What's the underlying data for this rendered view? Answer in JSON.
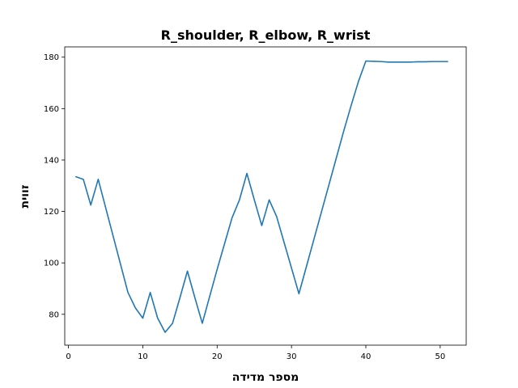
{
  "chart_data": {
    "type": "line",
    "title": "R_shoulder, R_elbow, R_wrist",
    "xlabel": "מספר מדידה",
    "ylabel": "זווית",
    "xlim": [
      -0.5,
      53.5
    ],
    "ylim": [
      68,
      184
    ],
    "xticks": [
      0,
      10,
      20,
      30,
      40,
      50
    ],
    "yticks": [
      80,
      100,
      120,
      140,
      160,
      180
    ],
    "grid": false,
    "series": [
      {
        "color": "#1f77b4",
        "x": [
          1,
          2,
          3,
          4,
          5,
          6,
          7,
          8,
          9,
          10,
          11,
          12,
          13,
          14,
          15,
          16,
          17,
          18,
          19,
          20,
          21,
          22,
          23,
          24,
          25,
          26,
          27,
          28,
          29,
          30,
          31,
          32,
          33,
          34,
          35,
          36,
          37,
          38,
          39,
          40,
          41,
          42,
          43,
          44,
          45,
          46,
          47,
          48,
          49,
          50,
          51
        ],
        "y": [
          133.5,
          132.5,
          122.5,
          132.5,
          121.5,
          110.5,
          99.5,
          88.5,
          82.5,
          78.5,
          88.5,
          78.5,
          73.0,
          76.5,
          86.5,
          96.8,
          86.5,
          76.5,
          87.0,
          97.5,
          107.5,
          117.5,
          124.5,
          134.8,
          124.5,
          114.5,
          124.5,
          118.0,
          108.0,
          98.0,
          88.0,
          98.5,
          109.0,
          119.5,
          130.0,
          140.5,
          151.0,
          161.0,
          170.5,
          178.5,
          178.4,
          178.3,
          178.1,
          178.1,
          178.1,
          178.1,
          178.2,
          178.2,
          178.3,
          178.3,
          178.3
        ]
      }
    ]
  }
}
